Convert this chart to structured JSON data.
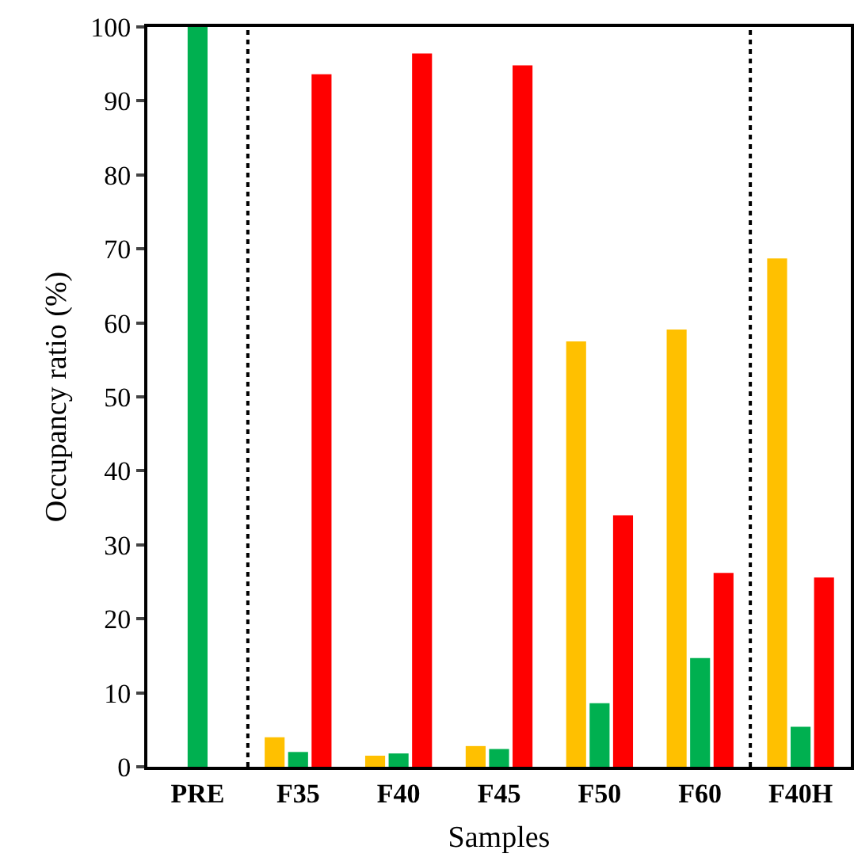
{
  "chart_data": {
    "type": "bar",
    "xlabel": "Samples",
    "ylabel": "Occupancy ratio (%)",
    "categories": [
      "PRE",
      "F35",
      "F40",
      "F45",
      "F50",
      "F60",
      "F40H"
    ],
    "series": [
      {
        "color": "#ffc000",
        "values": [
          0,
          4,
          1.5,
          2.8,
          57.5,
          59.1,
          68.7
        ]
      },
      {
        "color": "#00b050",
        "values": [
          100,
          2,
          1.8,
          2.4,
          8.6,
          14.7,
          5.4
        ]
      },
      {
        "color": "#ff0000",
        "values": [
          0,
          93.6,
          96.4,
          94.8,
          34,
          26.2,
          25.6
        ]
      }
    ],
    "ylim": [
      0,
      100
    ],
    "yticks": [
      0,
      10,
      20,
      30,
      40,
      50,
      60,
      70,
      80,
      90,
      100
    ],
    "grid": false
  }
}
